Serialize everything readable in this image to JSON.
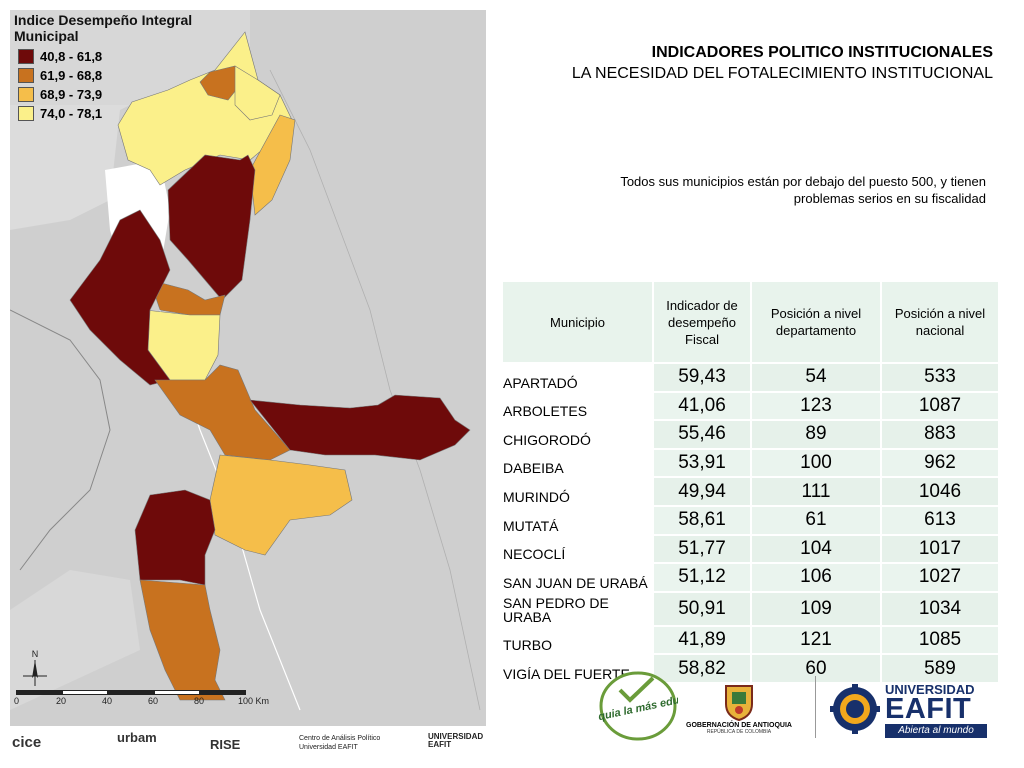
{
  "map": {
    "legend_title": "Indice Desempeño Integral Municipal",
    "legend": [
      {
        "range": "40,8 - 61,8",
        "color": "#6e0a0a"
      },
      {
        "range": "61,9 - 68,8",
        "color": "#c8721f"
      },
      {
        "range": "68,9 - 73,9",
        "color": "#f5be4a"
      },
      {
        "range": "74,0 - 78,1",
        "color": "#fbf08a"
      }
    ],
    "scale_labels": [
      "0",
      "20",
      "40",
      "60",
      "80",
      "100 Km"
    ],
    "north_label": "N"
  },
  "heading": {
    "title": "INDICADORES POLITICO INSTITUCIONALES",
    "subtitle": "LA NECESIDAD DEL FOTALECIMIENTO INSTITUCIONAL"
  },
  "note": "Todos sus municipios están por debajo del puesto 500, y tienen problemas serios en su fiscalidad",
  "table": {
    "headers": [
      "Municipio",
      "Indicador de desempeño Fiscal",
      "Posición a nivel departamento",
      "Posición a nivel nacional"
    ],
    "rows": [
      {
        "municipio": "APARTADÓ",
        "indicador": "59,43",
        "depto": "54",
        "nacional": "533"
      },
      {
        "municipio": "ARBOLETES",
        "indicador": "41,06",
        "depto": "123",
        "nacional": "1087"
      },
      {
        "municipio": "CHIGORODÓ",
        "indicador": "55,46",
        "depto": "89",
        "nacional": "883"
      },
      {
        "municipio": "DABEIBA",
        "indicador": "53,91",
        "depto": "100",
        "nacional": "962"
      },
      {
        "municipio": "MURINDÓ",
        "indicador": "49,94",
        "depto": "111",
        "nacional": "1046"
      },
      {
        "municipio": "MUTATÁ",
        "indicador": "58,61",
        "depto": "61",
        "nacional": "613"
      },
      {
        "municipio": "NECOCLÍ",
        "indicador": "51,77",
        "depto": "104",
        "nacional": "1017"
      },
      {
        "municipio": "SAN JUAN DE URABÁ",
        "indicador": "51,12",
        "depto": "106",
        "nacional": "1027"
      },
      {
        "municipio": "SAN PEDRO DE URABA",
        "indicador": "50,91",
        "depto": "109",
        "nacional": "1034"
      },
      {
        "municipio": "TURBO",
        "indicador": "41,89",
        "depto": "121",
        "nacional": "1085"
      },
      {
        "municipio": "VIGÍA DEL FUERTE",
        "indicador": "58,82",
        "depto": "60",
        "nacional": "589"
      }
    ]
  },
  "logos": {
    "antioquia": "Antioquia la más educada",
    "gobernacion": "GOBERNACIÓN DE ANTIOQUIA",
    "gobernacion_sub": "REPÚBLICA DE COLOMBIA",
    "eafit_uni": "UNIVERSIDAD",
    "eafit_name": "EAFIT",
    "eafit_tag": "Abierta al mundo"
  },
  "footer": {
    "cice": "cice",
    "urbam": "urbam",
    "rise": "RISE",
    "capital": "Centro de Análisis Político",
    "capital2": "Universidad EAFIT",
    "univ": "UNIVERSIDAD",
    "univ2": "EAFIT"
  }
}
